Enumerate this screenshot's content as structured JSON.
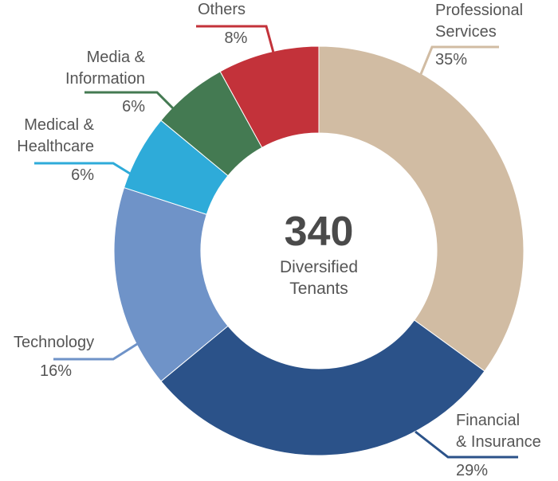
{
  "chart_data": {
    "type": "pie",
    "variant": "donut",
    "center": {
      "value": "340",
      "line1": "Diversified",
      "line2": "Tenants"
    },
    "slices": [
      {
        "name": "Professional Services",
        "label_lines": [
          "Professional",
          "Services"
        ],
        "pct_text": "35%",
        "value": 35,
        "color": "#d1bca3"
      },
      {
        "name": "Financial & Insurance",
        "label_lines": [
          "Financial",
          "& Insurance"
        ],
        "pct_text": "29%",
        "value": 29,
        "color": "#2b5289"
      },
      {
        "name": "Technology",
        "label_lines": [
          "Technology"
        ],
        "pct_text": "16%",
        "value": 16,
        "color": "#6f93c8"
      },
      {
        "name": "Medical & Healthcare",
        "label_lines": [
          "Medical &",
          "Healthcare"
        ],
        "pct_text": "6%",
        "value": 6,
        "color": "#2eabd9"
      },
      {
        "name": "Media & Information",
        "label_lines": [
          "Media &",
          "Information"
        ],
        "pct_text": "6%",
        "value": 6,
        "color": "#447a52"
      },
      {
        "name": "Others",
        "label_lines": [
          "Others"
        ],
        "pct_text": "8%",
        "value": 8,
        "color": "#c3323a"
      }
    ]
  }
}
